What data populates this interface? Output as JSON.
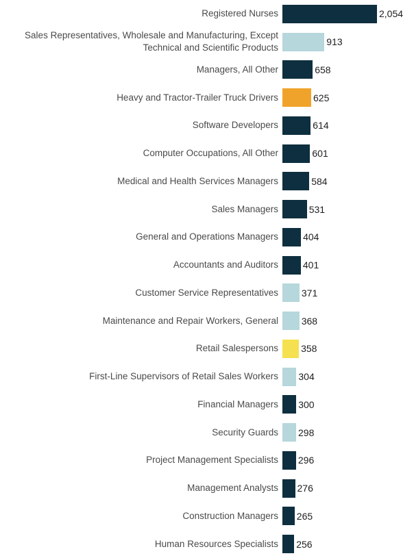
{
  "chart_data": {
    "type": "bar",
    "orientation": "horizontal",
    "xlim": [
      0,
      2054
    ],
    "max_value": 2054,
    "grid": false,
    "legend": false,
    "colors": {
      "dark_navy": "#0e2f3f",
      "light_blue": "#b6d7db",
      "amber": "#f0a32b",
      "yellow": "#f5e14f"
    },
    "rows": [
      {
        "label": "Registered Nurses",
        "value": 2054,
        "value_label": "2,054",
        "color": "dark_navy"
      },
      {
        "label": "Sales Representatives, Wholesale and Manufacturing, Except Technical and Scientific Products",
        "value": 913,
        "value_label": "913",
        "color": "light_blue"
      },
      {
        "label": "Managers, All Other",
        "value": 658,
        "value_label": "658",
        "color": "dark_navy"
      },
      {
        "label": "Heavy and Tractor-Trailer Truck Drivers",
        "value": 625,
        "value_label": "625",
        "color": "amber"
      },
      {
        "label": "Software Developers",
        "value": 614,
        "value_label": "614",
        "color": "dark_navy"
      },
      {
        "label": "Computer Occupations, All Other",
        "value": 601,
        "value_label": "601",
        "color": "dark_navy"
      },
      {
        "label": "Medical and Health Services Managers",
        "value": 584,
        "value_label": "584",
        "color": "dark_navy"
      },
      {
        "label": "Sales Managers",
        "value": 531,
        "value_label": "531",
        "color": "dark_navy"
      },
      {
        "label": "General and Operations Managers",
        "value": 404,
        "value_label": "404",
        "color": "dark_navy"
      },
      {
        "label": "Accountants and Auditors",
        "value": 401,
        "value_label": "401",
        "color": "dark_navy"
      },
      {
        "label": "Customer Service Representatives",
        "value": 371,
        "value_label": "371",
        "color": "light_blue"
      },
      {
        "label": "Maintenance and Repair Workers, General",
        "value": 368,
        "value_label": "368",
        "color": "light_blue"
      },
      {
        "label": "Retail Salespersons",
        "value": 358,
        "value_label": "358",
        "color": "yellow"
      },
      {
        "label": "First-Line Supervisors of Retail Sales Workers",
        "value": 304,
        "value_label": "304",
        "color": "light_blue"
      },
      {
        "label": "Financial Managers",
        "value": 300,
        "value_label": "300",
        "color": "dark_navy"
      },
      {
        "label": "Security Guards",
        "value": 298,
        "value_label": "298",
        "color": "light_blue"
      },
      {
        "label": "Project Management Specialists",
        "value": 296,
        "value_label": "296",
        "color": "dark_navy"
      },
      {
        "label": "Management Analysts",
        "value": 276,
        "value_label": "276",
        "color": "dark_navy"
      },
      {
        "label": "Construction Managers",
        "value": 265,
        "value_label": "265",
        "color": "dark_navy"
      },
      {
        "label": "Human Resources Specialists",
        "value": 256,
        "value_label": "256",
        "color": "dark_navy"
      }
    ]
  }
}
